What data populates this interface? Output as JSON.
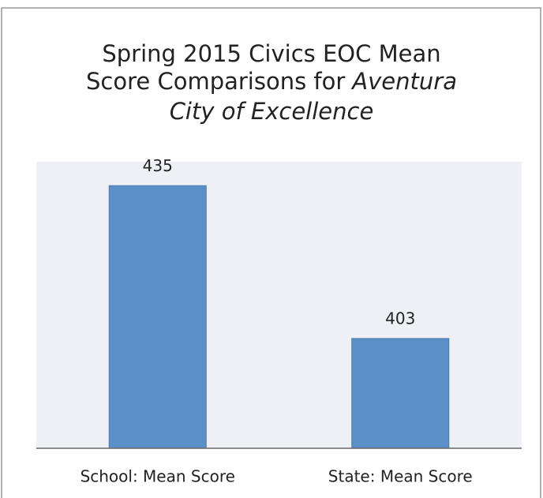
{
  "chart_data": {
    "type": "bar",
    "title": {
      "regular": [
        "Spring 2015 Civics EOC Mean",
        "Score Comparisons for"
      ],
      "italic": [
        "Aventura",
        "City of Excellence"
      ]
    },
    "categories": [
      "School: Mean Score",
      "State: Mean Score"
    ],
    "values": [
      435,
      403
    ],
    "color": "#5b8fc8",
    "ylim": [
      380,
      440
    ]
  }
}
